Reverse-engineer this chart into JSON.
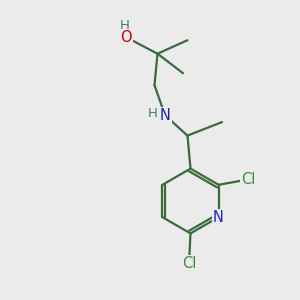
{
  "background_color": "#ebebeb",
  "bond_color": "#3a6b3a",
  "atom_colors": {
    "O": "#cc0000",
    "N_amine": "#2222aa",
    "N_pyridine": "#2222cc",
    "Cl": "#3a8c3a",
    "H": "#4a7a6a",
    "C": "#3a6b3a"
  },
  "bond_width": 1.6,
  "font_size": 10.5
}
